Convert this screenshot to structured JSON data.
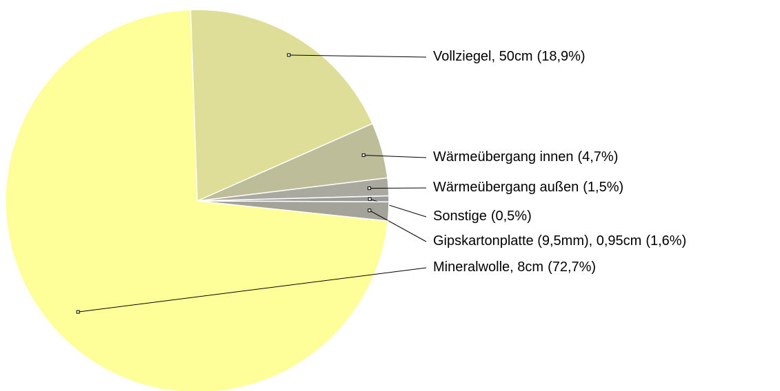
{
  "chart_data": {
    "type": "pie",
    "categories": [
      "Vollziegel, 50cm",
      "Wärmeübergang innen",
      "Wärmeübergang außen",
      "Sonstige",
      "Gipskartonplatte (9,5mm), 0,95cm",
      "Mineralwolle, 8cm"
    ],
    "values": [
      18.9,
      4.7,
      1.5,
      0.5,
      1.6,
      72.7
    ],
    "value_labels": [
      "(18,9%)",
      "(4,7%)",
      "(1,5%)",
      "(0,5%)",
      "(1,6%)",
      "(72,7%)"
    ],
    "colors": [
      "#dede99",
      "#bdbd99",
      "#a9a9a0",
      "#9c9c9c",
      "#a3a39a",
      "#ffff99"
    ]
  }
}
